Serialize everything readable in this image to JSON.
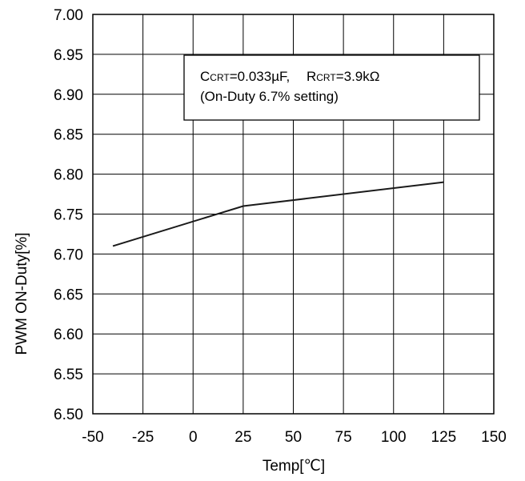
{
  "chart_data": {
    "type": "line",
    "x": [
      -40,
      25,
      125
    ],
    "series": [
      {
        "values": [
          6.71,
          6.76,
          6.79
        ]
      }
    ],
    "xlabel": "Temp[℃]",
    "ylabel": "PWM ON-Duty[%]",
    "xlim": [
      -50,
      150
    ],
    "ylim": [
      6.5,
      7.0
    ],
    "x_ticks": [
      "-50",
      "-25",
      "0",
      "25",
      "50",
      "75",
      "100",
      "125",
      "150"
    ],
    "y_ticks": [
      "6.50",
      "6.55",
      "6.60",
      "6.65",
      "6.70",
      "6.75",
      "6.80",
      "6.85",
      "6.90",
      "6.95",
      "7.00"
    ],
    "grid": true,
    "annotation": {
      "c_main": "C",
      "c_sub": "CRT",
      "c_value": "=0.033µF,",
      "r_main": "R",
      "r_sub": "CRT",
      "r_value": "=3.9kΩ",
      "line2": "(On-Duty 6.7% setting)"
    }
  }
}
